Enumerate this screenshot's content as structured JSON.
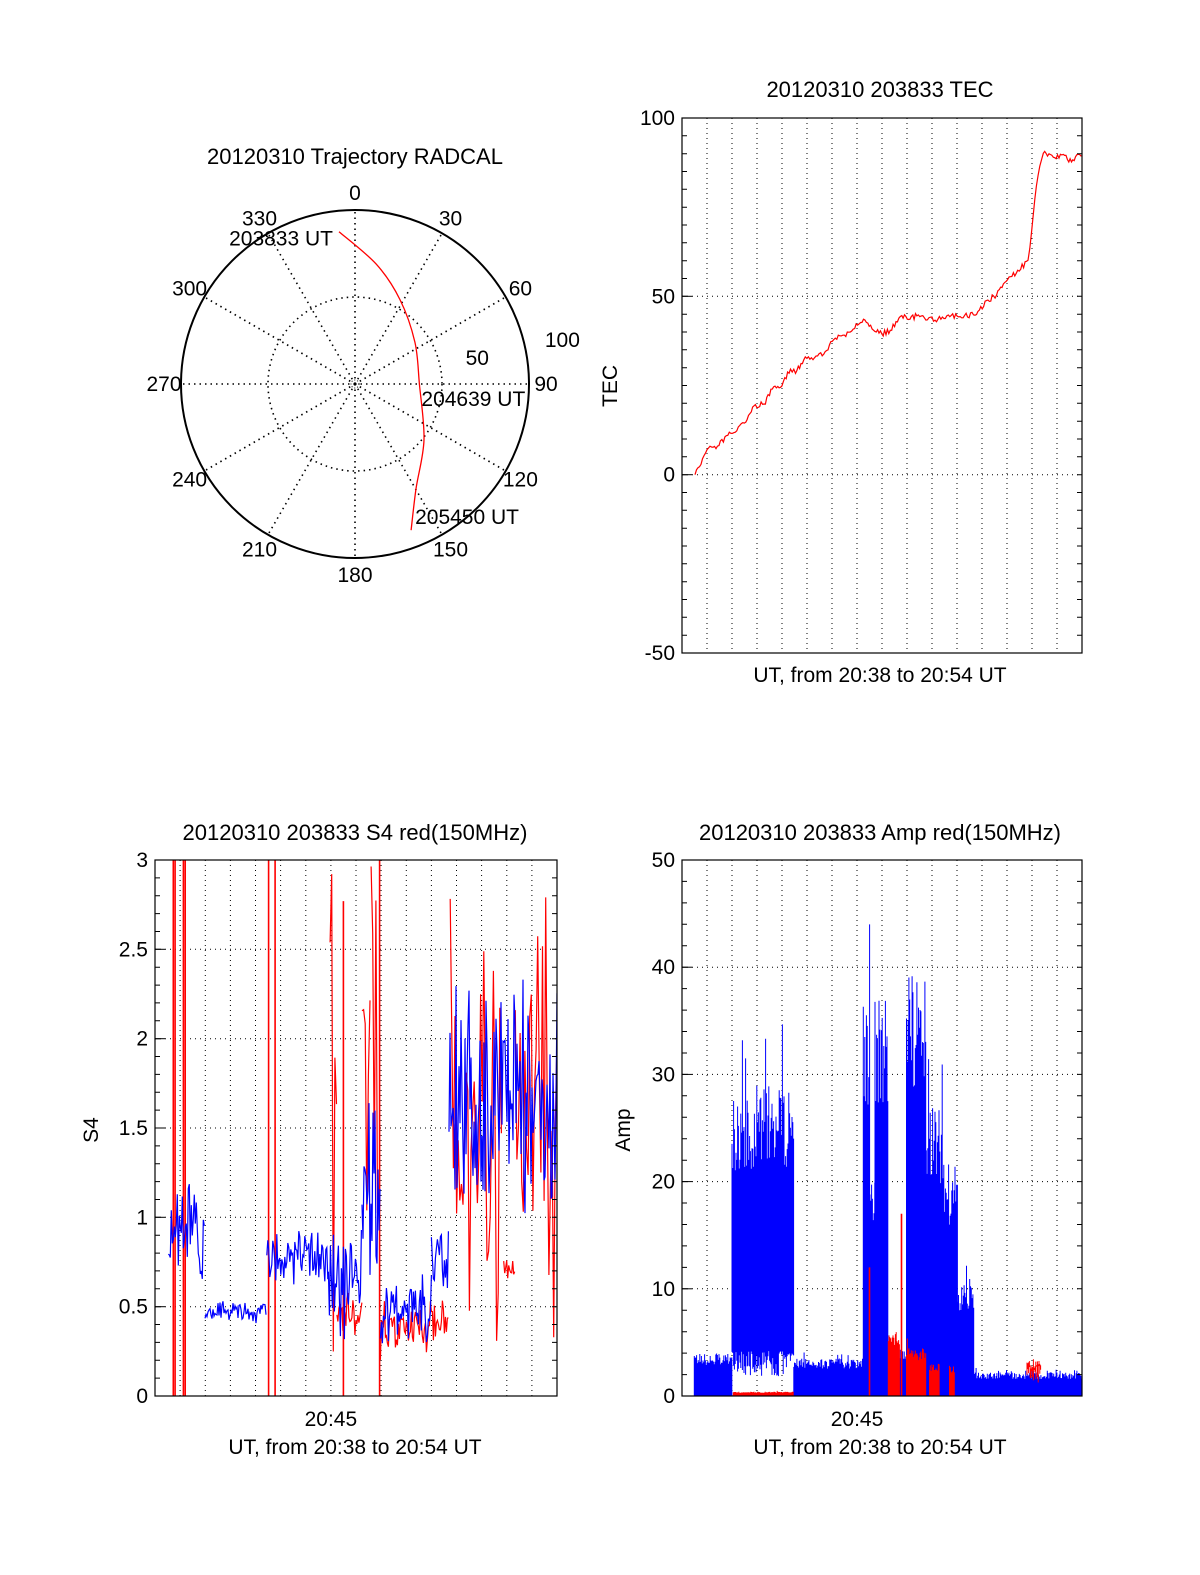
{
  "chart_data": [
    {
      "type": "polar",
      "title": "20120310 Trajectory RADCAL",
      "r_max": 100,
      "angle_ticks": [
        0,
        30,
        60,
        90,
        120,
        150,
        180,
        210,
        240,
        270,
        300,
        330
      ],
      "angle_labels": [
        "0",
        "30",
        "60",
        "90",
        "120",
        "150",
        "180",
        "210",
        "240",
        "270",
        "300",
        "330"
      ],
      "radius_ticks": [
        50,
        100
      ],
      "radius_labels": [
        "50",
        "100"
      ],
      "radius_label_azimuth": 78,
      "trajectory": {
        "color": "#ff0000",
        "azimuth": [
          354,
          10,
          28,
          55,
          90,
          129,
          150,
          159
        ],
        "radius": [
          88,
          70,
          55,
          42,
          37,
          51,
          70,
          90
        ]
      },
      "annotations": [
        {
          "text": "203833 UT",
          "point_index": 0
        },
        {
          "text": "204639 UT",
          "point_index": 4
        },
        {
          "text": "205450 UT",
          "point_index": 7
        }
      ]
    },
    {
      "type": "line",
      "title": "20120310 203833 TEC",
      "xlabel": "UT, from 20:38 to 20:54 UT",
      "ylabel": "TEC",
      "x_units": "minutes since 20:38",
      "xlim": [
        0,
        16
      ],
      "xgrid_step": 1,
      "xticks": [],
      "ylim": [
        -50,
        100
      ],
      "yticks": [
        -50,
        0,
        50,
        100
      ],
      "ytick_labels": [
        "-50",
        "0",
        "50",
        "100"
      ],
      "ygrid": [
        0,
        50
      ],
      "yminor_step": 5,
      "series": [
        {
          "name": "TEC",
          "color": "#ff0000",
          "kind": "line",
          "x": [
            0.52,
            1.0,
            1.42,
            1.95,
            2.55,
            2.88,
            3.28,
            3.61,
            3.94,
            4.34,
            4.54,
            4.87,
            5.67,
            6.07,
            6.73,
            7.26,
            7.66,
            7.99,
            8.33,
            8.79,
            9.12,
            9.45,
            10.12,
            10.71,
            11.78,
            12.18,
            12.58,
            12.91,
            13.37,
            13.84,
            13.98,
            14.11,
            14.31,
            14.45,
            14.85,
            15.25,
            15.58,
            15.85,
            16.0
          ],
          "y": [
            0,
            7,
            8,
            11.6,
            14.7,
            19.3,
            19.8,
            24,
            24.5,
            29.6,
            28.4,
            32.2,
            33.8,
            37.9,
            40,
            43.6,
            40.5,
            39.5,
            40.5,
            44.6,
            43.6,
            44.8,
            43.3,
            44.3,
            44.9,
            48.8,
            50.3,
            53.9,
            56.5,
            60.1,
            67.9,
            77.2,
            86.5,
            90.1,
            89,
            89.8,
            87.7,
            89.8,
            89.4
          ]
        }
      ]
    },
    {
      "type": "line",
      "title": "20120310 203833 S4 red(150MHz)",
      "xlabel": "UT, from 20:38 to 20:54 UT",
      "ylabel": "S4",
      "x_units": "minutes since 20:38",
      "xlim": [
        0,
        16
      ],
      "xgrid_step": 1,
      "xticks": [
        {
          "value": 7,
          "label": "20:45"
        }
      ],
      "ylim": [
        0,
        3
      ],
      "yticks": [
        0,
        0.5,
        1,
        1.5,
        2,
        2.5,
        3
      ],
      "ytick_labels": [
        "0",
        "0.5",
        "1",
        "1.5",
        "2",
        "2.5",
        "3"
      ],
      "ygrid": [
        0.5,
        1,
        1.5,
        2,
        2.5
      ],
      "yminor_step": 0.1,
      "series": [
        {
          "name": "S4 red spikes",
          "color": "#ff0000",
          "kind": "spikes",
          "spikes": [
            [
              0.73,
              3.2
            ],
            [
              0.8,
              3.2
            ],
            [
              1.13,
              3.2
            ],
            [
              1.2,
              3.2
            ],
            [
              4.52,
              3.2
            ],
            [
              4.78,
              3.2
            ],
            [
              7.5,
              2.77
            ],
            [
              8.94,
              3.2
            ]
          ]
        },
        {
          "name": "S4 red",
          "color": "#ff0000",
          "kind": "noisy",
          "segments": [
            [
              6.97,
              7.24,
              0,
              3.2
            ],
            [
              7.24,
              8.24,
              0.3,
              0.6
            ],
            [
              8.24,
              8.6,
              0.8,
              2.8
            ],
            [
              8.6,
              8.97,
              0.5,
              3.2
            ],
            [
              8.97,
              11.7,
              0.2,
              0.55
            ],
            [
              11.75,
              13.85,
              0,
              3.2
            ],
            [
              13.88,
              14.34,
              0.55,
              0.8
            ],
            [
              14.34,
              16,
              0,
              3.2
            ]
          ]
        },
        {
          "name": "S4 blue",
          "color": "#0000ff",
          "kind": "noisy",
          "segments": [
            [
              0.53,
              1.99,
              0.6,
              1.25
            ],
            [
              1.99,
              4.45,
              0.4,
              0.55
            ],
            [
              4.45,
              6.9,
              0.58,
              0.95
            ],
            [
              6.9,
              8.24,
              0.3,
              1.0
            ],
            [
              8.24,
              8.97,
              0.6,
              1.7
            ],
            [
              8.97,
              11.0,
              0.25,
              0.7
            ],
            [
              11.0,
              11.7,
              0.5,
              1.1
            ],
            [
              11.7,
              16,
              0.9,
              2.4
            ]
          ]
        }
      ]
    },
    {
      "type": "line",
      "title": "20120310 203833 Amp red(150MHz)",
      "xlabel": "UT, from 20:38 to 20:54 UT",
      "ylabel": "Amp",
      "x_units": "minutes since 20:38",
      "xlim": [
        0,
        16
      ],
      "xgrid_step": 1,
      "xticks": [
        {
          "value": 7,
          "label": "20:45"
        }
      ],
      "ylim": [
        0,
        50
      ],
      "yticks": [
        0,
        10,
        20,
        30,
        40,
        50
      ],
      "ytick_labels": [
        "0",
        "10",
        "20",
        "30",
        "40",
        "50"
      ],
      "ygrid": [
        10,
        20,
        30,
        40
      ],
      "yminor_step": 2,
      "series": [
        {
          "name": "Amp blue",
          "color": "#0000ff",
          "kind": "fill",
          "segments": [
            [
              0.49,
              2.0,
              0,
              4
            ],
            [
              2.0,
              4.47,
              3,
              29
            ],
            [
              4.47,
              7.25,
              0,
              3.5
            ],
            [
              7.25,
              7.52,
              0,
              37
            ],
            [
              7.52,
              7.72,
              0,
              21
            ],
            [
              7.72,
              8.25,
              0,
              37
            ],
            [
              8.25,
              8.98,
              0,
              4.5
            ],
            [
              8.98,
              9.77,
              0.5,
              40
            ],
            [
              9.77,
              10.44,
              0,
              27
            ],
            [
              10.44,
              11.03,
              0,
              22
            ],
            [
              11.03,
              11.7,
              0,
              11
            ],
            [
              11.7,
              16,
              0,
              2.2
            ]
          ]
        },
        {
          "name": "Amp red",
          "color": "#ff0000",
          "kind": "fill",
          "segments": [
            [
              2.05,
              4.47,
              0,
              0.4
            ],
            [
              8.25,
              8.7,
              0,
              6
            ],
            [
              8.98,
              9.77,
              0,
              4.5
            ],
            [
              9.9,
              10.3,
              0,
              3
            ],
            [
              10.7,
              10.9,
              0,
              3
            ],
            [
              13.8,
              14.35,
              2,
              3.5
            ]
          ]
        },
        {
          "name": "Amp red spikes",
          "color": "#ff0000",
          "kind": "spikes",
          "spikes": [
            [
              7.5,
              12
            ],
            [
              8.78,
              17
            ]
          ]
        }
      ]
    }
  ]
}
